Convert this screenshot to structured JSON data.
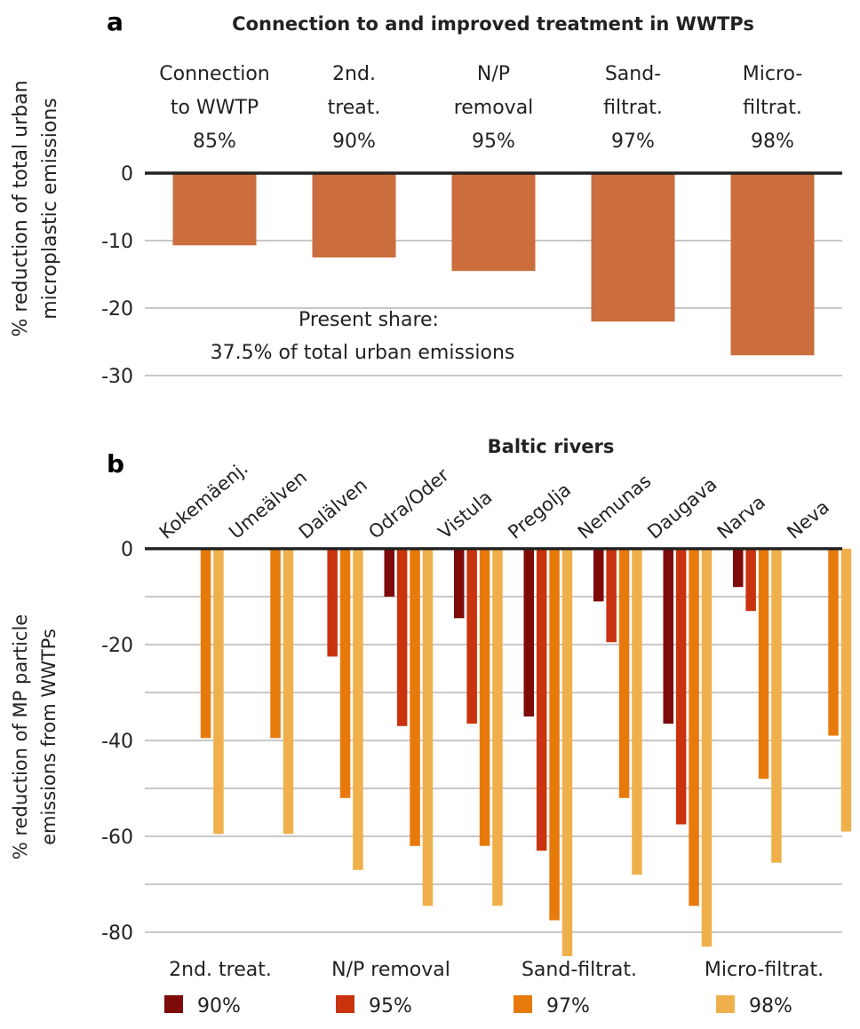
{
  "chart_data": [
    {
      "panel": "a",
      "type": "bar",
      "title": "Connection to and improved treatment in WWTPs",
      "ylabel_line1": "% reduction of total urban",
      "ylabel_line2": "microplastic emissions",
      "ylim": [
        -30,
        0
      ],
      "yticks": [
        0,
        -10,
        -20,
        -30
      ],
      "ytick_labels": [
        "0",
        "-10",
        "-20",
        "-30"
      ],
      "grid": true,
      "categories": [
        {
          "line1": "Connection",
          "line2": "to WWTP",
          "pct": "85%"
        },
        {
          "line1": "2nd.",
          "line2": "treat.",
          "pct": "90%"
        },
        {
          "line1": "N/P",
          "line2": "removal",
          "pct": "95%"
        },
        {
          "line1": "Sand-",
          "line2": "filtrat.",
          "pct": "97%"
        },
        {
          "line1": "Micro-",
          "line2": "filtrat.",
          "pct": "98%"
        }
      ],
      "values": [
        -10.7,
        -12.5,
        -14.5,
        -22.0,
        -27.0
      ],
      "bar_color": "#CB6D3C",
      "annotation_line1": "Present share:",
      "annotation_line2": "37.5% of total urban emissions"
    },
    {
      "panel": "b",
      "type": "bar",
      "title": "Baltic rivers",
      "ylabel_line1": "% reduction of MP particle",
      "ylabel_line2": "emissions from WWTPs",
      "ylim": [
        -80,
        0
      ],
      "yticks": [
        0,
        -20,
        -40,
        -60,
        -80
      ],
      "ytick_labels": [
        "0",
        "-20",
        "-40",
        "-60",
        "-80"
      ],
      "grid": true,
      "categories": [
        "Kokemäenj.",
        "Umeälven",
        "Dalälven",
        "Odra/Oder",
        "Vistula",
        "Pregolja",
        "Nemunas",
        "Daugava",
        "Narva",
        "Neva"
      ],
      "series": [
        {
          "name": "2nd. treat.",
          "pct": "90%",
          "color": "#7E0A0A",
          "values": [
            null,
            null,
            null,
            -10,
            -14.5,
            -35,
            -11,
            -36.5,
            -8,
            null
          ]
        },
        {
          "name": "N/P removal",
          "pct": "95%",
          "color": "#C9330E",
          "values": [
            null,
            null,
            -22.5,
            -37,
            -36.5,
            -63,
            -19.5,
            -57.5,
            -13,
            null
          ]
        },
        {
          "name": "Sand-filtrat.",
          "pct": "97%",
          "color": "#E87A0C",
          "values": [
            -39.5,
            -39.5,
            -52,
            -62,
            -62,
            -77.5,
            -52,
            -74.5,
            -48,
            -39
          ]
        },
        {
          "name": "Micro-filtrat.",
          "pct": "98%",
          "color": "#EFB04C",
          "values": [
            -59.5,
            -59.5,
            -67,
            -74.5,
            -74.5,
            -85,
            -68,
            -83,
            -65.5,
            -59
          ]
        }
      ]
    }
  ],
  "panel_labels": {
    "a": "a",
    "b": "b"
  },
  "colors": {
    "axis": "#222222",
    "grid": "#A8A8A8",
    "text": "#222222"
  }
}
